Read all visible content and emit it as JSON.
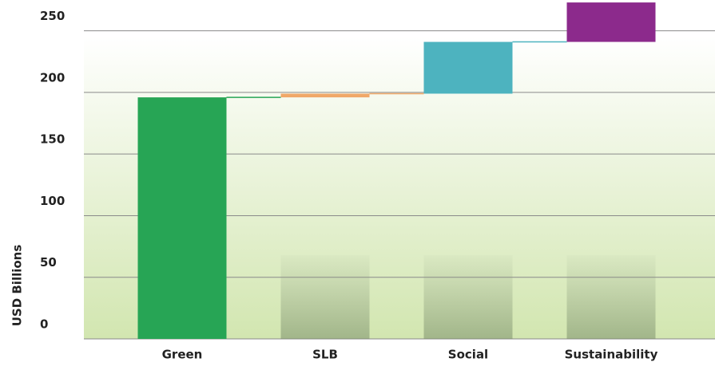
{
  "chart_data": {
    "type": "waterfall",
    "y_axis_label": "USD Billions",
    "categories": [
      "Green",
      "SLB",
      "Social",
      "Sustainability"
    ],
    "values": [
      196,
      3,
      42,
      32
    ],
    "colors": [
      "#27a555",
      "#f0a868",
      "#4db3bf",
      "#8c2a8c"
    ],
    "ylim": [
      0,
      275
    ],
    "yticks": [
      0,
      50,
      100,
      150,
      200,
      250
    ],
    "grid": true
  }
}
